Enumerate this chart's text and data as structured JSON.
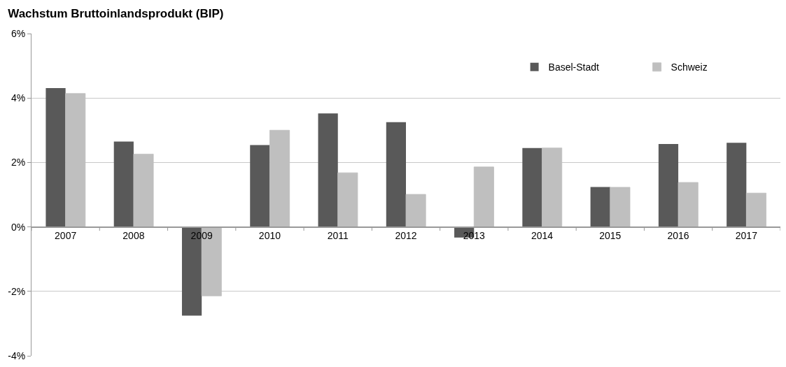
{
  "chart_data": {
    "type": "bar",
    "title": "Wachstum Bruttoinlandsprodukt (BIP)",
    "categories": [
      "2007",
      "2008",
      "2009",
      "2010",
      "2011",
      "2012",
      "2013",
      "2014",
      "2015",
      "2016",
      "2017"
    ],
    "series": [
      {
        "name": "Basel-Stadt",
        "color": "#595959",
        "values": [
          4.31,
          2.65,
          -2.75,
          2.54,
          3.52,
          3.25,
          -0.33,
          2.45,
          1.24,
          2.57,
          2.61
        ]
      },
      {
        "name": "Schweiz",
        "color": "#bfbfbf",
        "values": [
          4.14,
          2.26,
          -2.14,
          3.0,
          1.68,
          1.01,
          1.86,
          2.45,
          1.23,
          1.38,
          1.05
        ]
      }
    ],
    "ylim": [
      -4,
      6
    ],
    "yticks": [
      {
        "value": -4,
        "label": "-4%"
      },
      {
        "value": -2,
        "label": "-2%"
      },
      {
        "value": 0,
        "label": "0%"
      },
      {
        "value": 2,
        "label": "2%"
      },
      {
        "value": 4,
        "label": "4%"
      },
      {
        "value": 6,
        "label": "6%"
      }
    ],
    "grid": "y",
    "legend": "top right"
  }
}
